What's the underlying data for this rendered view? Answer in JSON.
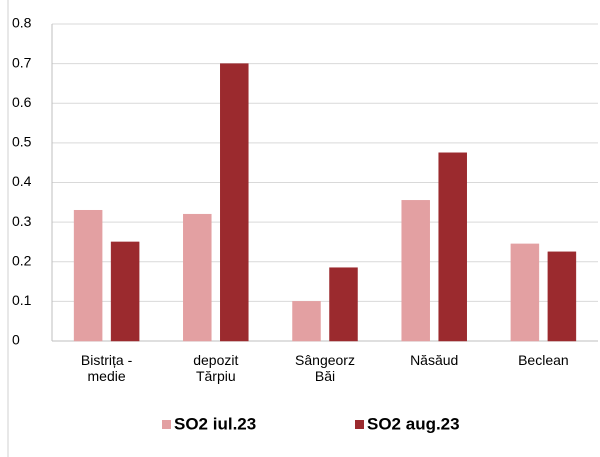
{
  "chart_data": {
    "type": "bar",
    "categories": [
      [
        "Bistrița -",
        "medie"
      ],
      [
        "depozit",
        "Tărpiu"
      ],
      [
        "Sângeorz",
        "Băi"
      ],
      [
        "Năsăud"
      ],
      [
        "Beclean"
      ]
    ],
    "series": [
      {
        "name": "SO2 iul.23",
        "color": "#e3a0a2",
        "values": [
          0.33,
          0.32,
          0.1,
          0.355,
          0.245
        ]
      },
      {
        "name": "SO2 aug.23",
        "color": "#9b2a2e",
        "values": [
          0.25,
          0.7,
          0.185,
          0.475,
          0.225
        ]
      }
    ],
    "ylim": [
      0,
      0.8
    ],
    "yticks": [
      0,
      0.1,
      0.2,
      0.3,
      0.4,
      0.5,
      0.6,
      0.7,
      0.8
    ],
    "grid": true,
    "legend": "bottom"
  }
}
